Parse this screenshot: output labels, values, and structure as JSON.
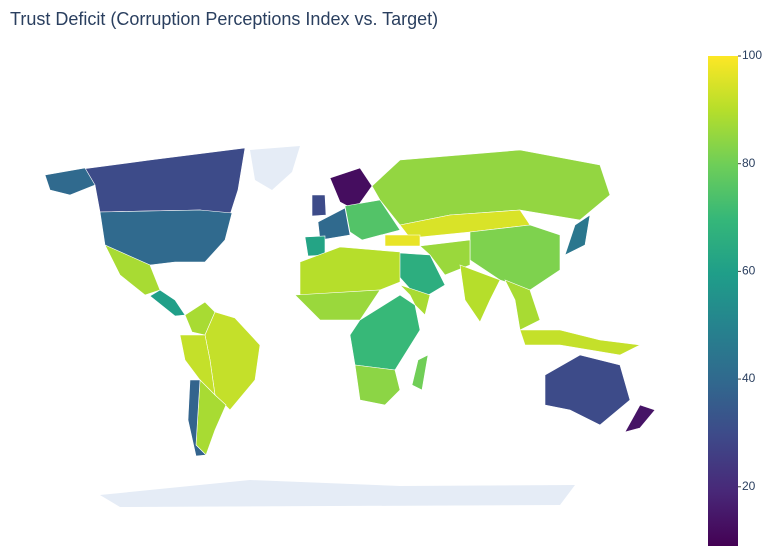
{
  "chart_data": {
    "type": "choropleth",
    "title": "Trust Deficit (Corruption Perceptions Index vs. Target)",
    "values": [
      30,
      40,
      88,
      60,
      88,
      92,
      92,
      88,
      38,
      12,
      30,
      40,
      62,
      75,
      85,
      95,
      97,
      82,
      66,
      86,
      90,
      88,
      45,
      92,
      90,
      86,
      70,
      88,
      84,
      80,
      30,
      14
    ],
    "colorscale": [
      "#440154",
      "#482878",
      "#3e4989",
      "#31688e",
      "#26828e",
      "#1f9e89",
      "#35b779",
      "#6ece58",
      "#b5de2b",
      "#fde725"
    ],
    "land_color": "#e5ecf6",
    "zlim": [
      9,
      100
    ],
    "zticks": [
      20,
      40,
      60,
      80,
      100
    ]
  }
}
